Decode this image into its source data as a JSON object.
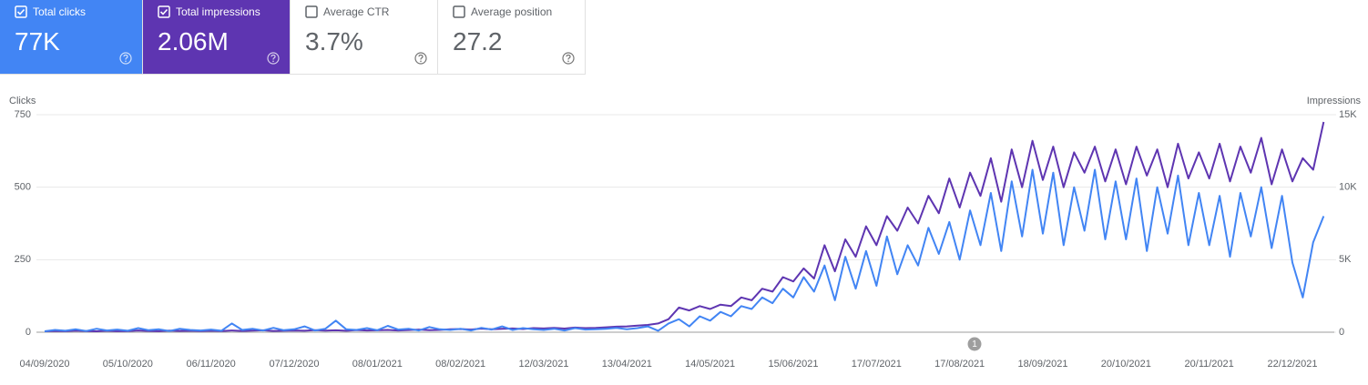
{
  "cards": [
    {
      "label": "Total clicks",
      "value": "77K",
      "checked": true,
      "color": "#4285f4"
    },
    {
      "label": "Total impressions",
      "value": "2.06M",
      "checked": true,
      "color": "#5e35b1"
    },
    {
      "label": "Average CTR",
      "value": "3.7%",
      "checked": false,
      "color": "#ffffff"
    },
    {
      "label": "Average position",
      "value": "27.2",
      "checked": false,
      "color": "#ffffff"
    }
  ],
  "chart_data": {
    "type": "line",
    "y_label": "Clicks",
    "y2_label": "Impressions",
    "annotation": "1",
    "categories": [
      "04/09/2020",
      null,
      null,
      null,
      null,
      null,
      null,
      null,
      "05/10/2020",
      null,
      null,
      null,
      null,
      null,
      null,
      null,
      "06/11/2020",
      null,
      null,
      null,
      null,
      null,
      null,
      null,
      "07/12/2020",
      null,
      null,
      null,
      null,
      null,
      null,
      null,
      "08/01/2021",
      null,
      null,
      null,
      null,
      null,
      null,
      null,
      "08/02/2021",
      null,
      null,
      null,
      null,
      null,
      null,
      null,
      "12/03/2021",
      null,
      null,
      null,
      null,
      null,
      null,
      null,
      "13/04/2021",
      null,
      null,
      null,
      null,
      null,
      null,
      null,
      "14/05/2021",
      null,
      null,
      null,
      null,
      null,
      null,
      null,
      "15/06/2021",
      null,
      null,
      null,
      null,
      null,
      null,
      null,
      "17/07/2021",
      null,
      null,
      null,
      null,
      null,
      null,
      null,
      "17/08/2021",
      null,
      null,
      null,
      null,
      null,
      null,
      null,
      "18/09/2021",
      null,
      null,
      null,
      null,
      null,
      null,
      null,
      "20/10/2021",
      null,
      null,
      null,
      null,
      null,
      null,
      null,
      "20/11/2021",
      null,
      null,
      null,
      null,
      null,
      null,
      null,
      "22/12/2021",
      null,
      null,
      null
    ],
    "series": [
      {
        "name": "Impressions",
        "color": "#5e35b1",
        "axis": "y2",
        "values": [
          60,
          90,
          70,
          110,
          80,
          60,
          100,
          70,
          80,
          120,
          90,
          70,
          110,
          90,
          100,
          80,
          100,
          80,
          120,
          90,
          110,
          130,
          90,
          100,
          120,
          100,
          140,
          110,
          130,
          100,
          150,
          120,
          130,
          160,
          120,
          150,
          180,
          140,
          160,
          200,
          220,
          180,
          250,
          200,
          240,
          260,
          220,
          280,
          260,
          300,
          250,
          320,
          280,
          300,
          340,
          380,
          400,
          450,
          500,
          600,
          900,
          1700,
          1500,
          1800,
          1600,
          1900,
          1800,
          2400,
          2200,
          3000,
          2800,
          3800,
          3500,
          4400,
          3700,
          6000,
          4200,
          6400,
          5200,
          7300,
          6000,
          8000,
          7000,
          8600,
          7500,
          9400,
          8200,
          10600,
          8600,
          11000,
          9400,
          12000,
          9000,
          12600,
          10000,
          13200,
          10500,
          12800,
          10000,
          12400,
          11000,
          12800,
          10400,
          12600,
          10200,
          12800,
          10800,
          12600,
          10000,
          13000,
          10600,
          12400,
          10600,
          13000,
          10400,
          12800,
          11000,
          13400,
          10200,
          12600,
          10400,
          12000,
          11200,
          14500
        ]
      },
      {
        "name": "Clicks",
        "color": "#4285f4",
        "axis": "y",
        "values": [
          3,
          8,
          5,
          10,
          4,
          12,
          6,
          9,
          5,
          14,
          7,
          10,
          4,
          12,
          8,
          6,
          9,
          5,
          30,
          8,
          12,
          6,
          15,
          7,
          10,
          20,
          6,
          12,
          40,
          10,
          8,
          14,
          7,
          22,
          9,
          12,
          6,
          18,
          10,
          8,
          12,
          6,
          15,
          9,
          20,
          8,
          14,
          10,
          8,
          12,
          6,
          14,
          9,
          10,
          12,
          15,
          10,
          14,
          20,
          5,
          30,
          45,
          20,
          55,
          40,
          70,
          55,
          90,
          80,
          120,
          100,
          150,
          120,
          190,
          140,
          230,
          110,
          260,
          150,
          280,
          160,
          330,
          200,
          300,
          230,
          360,
          270,
          380,
          250,
          420,
          300,
          480,
          280,
          520,
          330,
          560,
          340,
          550,
          300,
          500,
          350,
          560,
          320,
          520,
          320,
          530,
          280,
          500,
          340,
          540,
          300,
          480,
          300,
          470,
          260,
          480,
          330,
          500,
          290,
          470,
          240,
          120,
          310,
          400
        ]
      }
    ],
    "ylim": [
      0,
      750
    ],
    "yticks": [
      0,
      250,
      500,
      750
    ],
    "y2lim": [
      0,
      15000
    ],
    "y2ticks": [
      0,
      {
        "value": 5000,
        "label": "5K"
      },
      {
        "value": 10000,
        "label": "10K"
      },
      {
        "value": 15000,
        "label": "15K"
      }
    ],
    "grid": true
  }
}
